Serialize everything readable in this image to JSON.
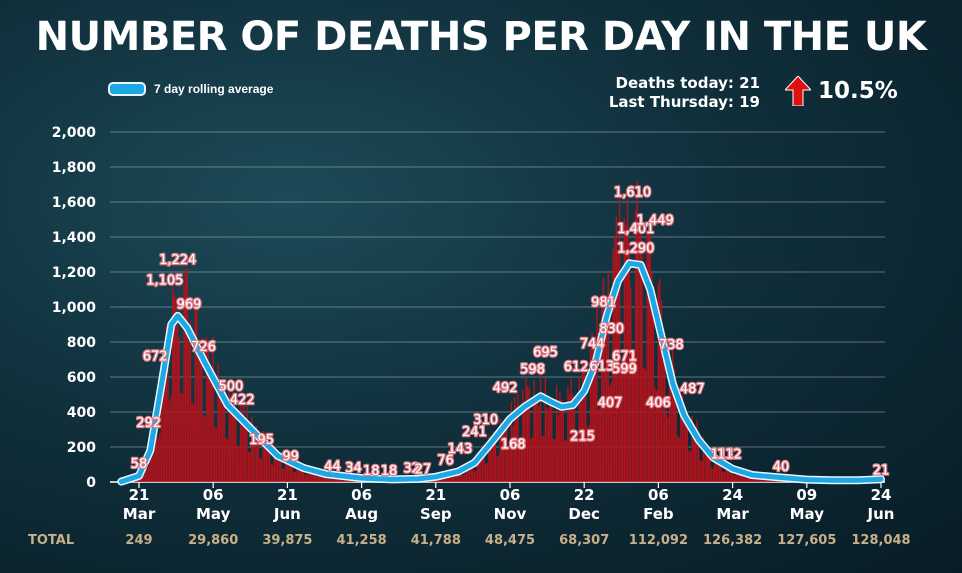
{
  "title": "NUMBER OF DEATHS PER DAY IN THE UK",
  "legend": {
    "label": "7 day rolling average"
  },
  "stats": {
    "today_label": "Deaths today: 21",
    "last_label": "Last Thursday: 19",
    "change": "10.5%"
  },
  "colors": {
    "bars": "#b5121b",
    "line": "#1ba8e4",
    "line_outline": "#e8f6ff",
    "data_label_outline": "#e07c86",
    "totals": "#c8b08a",
    "arrow": "#e01010"
  },
  "chart_data": {
    "type": "bar",
    "title": "NUMBER OF DEATHS PER DAY IN THE UK",
    "xlabel": "",
    "ylabel": "",
    "ylim": [
      0,
      2000
    ],
    "yticks": [
      0,
      200,
      400,
      600,
      800,
      1000,
      1200,
      1400,
      1600,
      1800,
      2000
    ],
    "ytick_labels": [
      "0",
      "200",
      "400",
      "600",
      "800",
      "1,000",
      "1,200",
      "1,400",
      "1,600",
      "1,800",
      "2,000"
    ],
    "grid": true,
    "legend_position": "top-left",
    "x_ticks": [
      {
        "day": "21",
        "month": "Mar",
        "date": "2020-03-21",
        "total": "249"
      },
      {
        "day": "06",
        "month": "May",
        "date": "2020-05-06",
        "total": "29,860"
      },
      {
        "day": "21",
        "month": "Jun",
        "date": "2020-06-21",
        "total": "39,875"
      },
      {
        "day": "06",
        "month": "Aug",
        "date": "2020-08-06",
        "total": "41,258"
      },
      {
        "day": "21",
        "month": "Sep",
        "date": "2020-09-21",
        "total": "41,788"
      },
      {
        "day": "06",
        "month": "Nov",
        "date": "2020-11-06",
        "total": "48,475"
      },
      {
        "day": "22",
        "month": "Dec",
        "date": "2020-12-22",
        "total": "68,307"
      },
      {
        "day": "06",
        "month": "Feb",
        "date": "2021-02-06",
        "total": "112,092"
      },
      {
        "day": "24",
        "month": "Mar",
        "date": "2021-03-24",
        "total": "126,382"
      },
      {
        "day": "09",
        "month": "May",
        "date": "2021-05-09",
        "total": "127,605"
      },
      {
        "day": "24",
        "month": "Jun",
        "date": "2021-06-24",
        "total": "128,048"
      }
    ],
    "totals_label": "TOTAL",
    "series": [
      {
        "name": "7 day rolling average",
        "type": "line",
        "points": [
          {
            "date": "2020-03-10",
            "y": 2
          },
          {
            "date": "2020-03-21",
            "y": 35
          },
          {
            "date": "2020-03-28",
            "y": 180
          },
          {
            "date": "2020-04-04",
            "y": 560
          },
          {
            "date": "2020-04-10",
            "y": 900
          },
          {
            "date": "2020-04-14",
            "y": 950
          },
          {
            "date": "2020-04-20",
            "y": 880
          },
          {
            "date": "2020-05-01",
            "y": 680
          },
          {
            "date": "2020-05-15",
            "y": 440
          },
          {
            "date": "2020-06-01",
            "y": 280
          },
          {
            "date": "2020-06-15",
            "y": 150
          },
          {
            "date": "2020-07-01",
            "y": 80
          },
          {
            "date": "2020-07-15",
            "y": 45
          },
          {
            "date": "2020-08-06",
            "y": 22
          },
          {
            "date": "2020-08-25",
            "y": 15
          },
          {
            "date": "2020-09-10",
            "y": 18
          },
          {
            "date": "2020-09-21",
            "y": 30
          },
          {
            "date": "2020-10-05",
            "y": 60
          },
          {
            "date": "2020-10-15",
            "y": 110
          },
          {
            "date": "2020-10-25",
            "y": 220
          },
          {
            "date": "2020-11-06",
            "y": 360
          },
          {
            "date": "2020-11-15",
            "y": 430
          },
          {
            "date": "2020-11-25",
            "y": 490
          },
          {
            "date": "2020-12-01",
            "y": 460
          },
          {
            "date": "2020-12-08",
            "y": 430
          },
          {
            "date": "2020-12-15",
            "y": 440
          },
          {
            "date": "2020-12-22",
            "y": 520
          },
          {
            "date": "2020-12-29",
            "y": 680
          },
          {
            "date": "2021-01-05",
            "y": 950
          },
          {
            "date": "2021-01-12",
            "y": 1150
          },
          {
            "date": "2021-01-19",
            "y": 1250
          },
          {
            "date": "2021-01-26",
            "y": 1240
          },
          {
            "date": "2021-02-01",
            "y": 1100
          },
          {
            "date": "2021-02-08",
            "y": 830
          },
          {
            "date": "2021-02-15",
            "y": 560
          },
          {
            "date": "2021-02-22",
            "y": 380
          },
          {
            "date": "2021-03-03",
            "y": 240
          },
          {
            "date": "2021-03-12",
            "y": 140
          },
          {
            "date": "2021-03-24",
            "y": 75
          },
          {
            "date": "2021-04-05",
            "y": 40
          },
          {
            "date": "2021-04-20",
            "y": 28
          },
          {
            "date": "2021-05-09",
            "y": 14
          },
          {
            "date": "2021-05-25",
            "y": 10
          },
          {
            "date": "2021-06-10",
            "y": 10
          },
          {
            "date": "2021-06-24",
            "y": 16
          }
        ]
      }
    ],
    "data_labels": [
      {
        "text": "58",
        "date": "2020-03-21",
        "y": 58
      },
      {
        "text": "292",
        "date": "2020-03-27",
        "y": 292
      },
      {
        "text": "672",
        "date": "2020-03-31",
        "y": 672
      },
      {
        "text": "1,105",
        "date": "2020-04-06",
        "y": 1105
      },
      {
        "text": "1,224",
        "date": "2020-04-14",
        "y": 1224
      },
      {
        "text": "969",
        "date": "2020-04-21",
        "y": 969
      },
      {
        "text": "726",
        "date": "2020-04-30",
        "y": 726
      },
      {
        "text": "500",
        "date": "2020-05-17",
        "y": 500
      },
      {
        "text": "422",
        "date": "2020-05-24",
        "y": 422
      },
      {
        "text": "195",
        "date": "2020-06-05",
        "y": 195
      },
      {
        "text": "99",
        "date": "2020-06-23",
        "y": 99
      },
      {
        "text": "44",
        "date": "2020-07-19",
        "y": 44
      },
      {
        "text": "34",
        "date": "2020-08-01",
        "y": 34
      },
      {
        "text": "18",
        "date": "2020-08-12",
        "y": 18
      },
      {
        "text": "18",
        "date": "2020-08-23",
        "y": 18
      },
      {
        "text": "32",
        "date": "2020-09-06",
        "y": 32
      },
      {
        "text": "27",
        "date": "2020-09-13",
        "y": 27
      },
      {
        "text": "76",
        "date": "2020-09-27",
        "y": 76
      },
      {
        "text": "143",
        "date": "2020-10-06",
        "y": 143
      },
      {
        "text": "241",
        "date": "2020-10-15",
        "y": 241
      },
      {
        "text": "310",
        "date": "2020-10-22",
        "y": 310
      },
      {
        "text": "492",
        "date": "2020-11-03",
        "y": 492
      },
      {
        "text": "168",
        "date": "2020-11-08",
        "y": 168
      },
      {
        "text": "598",
        "date": "2020-11-20",
        "y": 598
      },
      {
        "text": "695",
        "date": "2020-11-28",
        "y": 695
      },
      {
        "text": "612",
        "date": "2020-12-17",
        "y": 612
      },
      {
        "text": "215",
        "date": "2020-12-21",
        "y": 215
      },
      {
        "text": "744",
        "date": "2020-12-27",
        "y": 744
      },
      {
        "text": "613",
        "date": "2021-01-02",
        "y": 613
      },
      {
        "text": "407",
        "date": "2021-01-07",
        "y": 407
      },
      {
        "text": "981",
        "date": "2021-01-03",
        "y": 981
      },
      {
        "text": "830",
        "date": "2021-01-08",
        "y": 830
      },
      {
        "text": "671",
        "date": "2021-01-16",
        "y": 671
      },
      {
        "text": "599",
        "date": "2021-01-16",
        "y": 599
      },
      {
        "text": "1,290",
        "date": "2021-01-23",
        "y": 1290
      },
      {
        "text": "1,401",
        "date": "2021-01-23",
        "y": 1401
      },
      {
        "text": "1,610",
        "date": "2021-01-21",
        "y": 1610
      },
      {
        "text": "1,449",
        "date": "2021-02-04",
        "y": 1449
      },
      {
        "text": "406",
        "date": "2021-02-06",
        "y": 406
      },
      {
        "text": "738",
        "date": "2021-02-14",
        "y": 738
      },
      {
        "text": "487",
        "date": "2021-02-27",
        "y": 487
      },
      {
        "text": "111",
        "date": "2021-03-18",
        "y": 111
      },
      {
        "text": "112",
        "date": "2021-03-22",
        "y": 112
      },
      {
        "text": "40",
        "date": "2021-04-23",
        "y": 40
      },
      {
        "text": "21",
        "date": "2021-06-24",
        "y": 21
      }
    ]
  }
}
